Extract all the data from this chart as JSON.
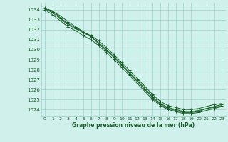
{
  "title": "Graphe pression niveau de la mer (hPa)",
  "bg_color": "#cff0eb",
  "grid_color": "#9ecfc8",
  "line_color": "#1a5c2a",
  "label_color": "#1a5c2a",
  "xlim": [
    -0.5,
    23.5
  ],
  "ylim": [
    1023.3,
    1034.7
  ],
  "yticks": [
    1024,
    1025,
    1026,
    1027,
    1028,
    1029,
    1030,
    1031,
    1032,
    1033,
    1034
  ],
  "xticks": [
    0,
    1,
    2,
    3,
    4,
    5,
    6,
    7,
    8,
    9,
    10,
    11,
    12,
    13,
    14,
    15,
    16,
    17,
    18,
    19,
    20,
    21,
    22,
    23
  ],
  "series": [
    [
      1034.2,
      1033.8,
      1033.4,
      1032.8,
      1032.3,
      1031.8,
      1031.3,
      1030.6,
      1029.9,
      1029.2,
      1028.4,
      1027.6,
      1026.8,
      1026.0,
      1025.2,
      1024.5,
      1024.1,
      1023.9,
      1023.7,
      1023.7,
      1023.8,
      1024.1,
      1024.2,
      1024.4
    ],
    [
      1034.1,
      1033.7,
      1033.1,
      1032.5,
      1032.1,
      1031.7,
      1031.3,
      1030.7,
      1030.0,
      1029.3,
      1028.5,
      1027.7,
      1026.9,
      1026.1,
      1025.3,
      1024.6,
      1024.2,
      1024.0,
      1023.8,
      1023.8,
      1023.9,
      1024.1,
      1024.3,
      1024.5
    ],
    [
      1034.0,
      1033.5,
      1032.9,
      1032.3,
      1031.9,
      1031.4,
      1031.0,
      1030.4,
      1029.7,
      1029.0,
      1028.2,
      1027.4,
      1026.6,
      1025.8,
      1025.0,
      1024.4,
      1024.0,
      1023.8,
      1023.6,
      1023.6,
      1023.7,
      1023.9,
      1024.1,
      1024.3
    ],
    [
      1034.1,
      1033.9,
      1033.2,
      1032.6,
      1032.2,
      1031.8,
      1031.4,
      1030.9,
      1030.2,
      1029.5,
      1028.7,
      1027.9,
      1027.1,
      1026.3,
      1025.5,
      1024.8,
      1024.4,
      1024.2,
      1024.0,
      1024.0,
      1024.1,
      1024.3,
      1024.5,
      1024.6
    ]
  ]
}
